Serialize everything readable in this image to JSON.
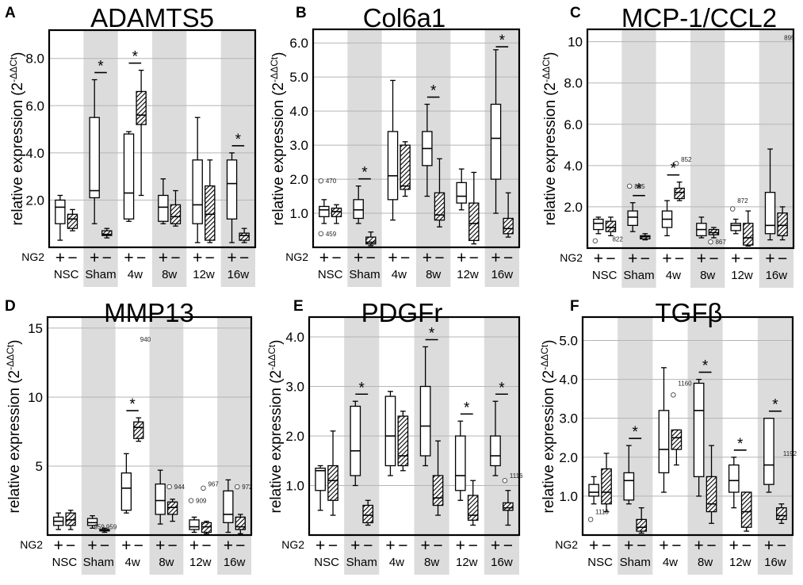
{
  "chart_data": [
    {
      "type": "box",
      "panel": "A",
      "title": "ADAMTS5",
      "ylabel_main": "relative expression (2",
      "ylabel_sup": "-ΔΔCt",
      "ylabel_end": ")",
      "ylim": [
        0,
        9.2
      ],
      "yticks": [
        2,
        4,
        6,
        8
      ],
      "yticklabels": [
        "2.0",
        "4.0",
        "6.0",
        "8.0"
      ],
      "shaded_groups": [
        1,
        3,
        5
      ],
      "groups": [
        "NSC",
        "Sham",
        "4w",
        "8w",
        "12w",
        "16w"
      ],
      "ng2_label": "NG2",
      "ng2_plus": "+",
      "ng2_minus": "−",
      "boxes": [
        [
          {
            "min": 0.3,
            "q1": 1.0,
            "med": 1.7,
            "q3": 2.0,
            "max": 2.2
          },
          {
            "min": 0.7,
            "q1": 0.8,
            "med": 1.2,
            "q3": 1.4,
            "max": 1.6
          }
        ],
        [
          {
            "min": 1.0,
            "q1": 2.1,
            "med": 2.4,
            "q3": 5.5,
            "max": 7.1
          },
          {
            "min": 0.4,
            "q1": 0.5,
            "med": 0.55,
            "q3": 0.7,
            "max": 0.8
          }
        ],
        [
          {
            "min": 1.1,
            "q1": 1.2,
            "med": 2.3,
            "q3": 4.8,
            "max": 4.9
          },
          {
            "min": 2.2,
            "q1": 5.2,
            "med": 5.6,
            "q3": 6.6,
            "max": 7.5
          }
        ],
        [
          {
            "min": 1.0,
            "q1": 1.1,
            "med": 1.7,
            "q3": 2.2,
            "max": 2.9
          },
          {
            "min": 0.9,
            "q1": 1.0,
            "med": 1.3,
            "q3": 1.8,
            "max": 2.4
          }
        ],
        [
          {
            "min": 0.2,
            "q1": 1.0,
            "med": 1.8,
            "q3": 3.7,
            "max": 5.5
          },
          {
            "min": 0.2,
            "q1": 0.3,
            "med": 1.4,
            "q3": 2.6,
            "max": 3.7
          }
        ],
        [
          {
            "min": 0.2,
            "q1": 1.2,
            "med": 2.7,
            "q3": 3.7,
            "max": 4.0
          },
          {
            "min": 0.2,
            "q1": 0.3,
            "med": 0.5,
            "q3": 0.6,
            "max": 0.8
          }
        ]
      ],
      "sig": [
        1,
        2,
        5
      ],
      "sig_symbol": "*",
      "outliers": [],
      "annotations": []
    },
    {
      "type": "box",
      "panel": "B",
      "title": "Col6a1",
      "ylabel_main": "relative expression (2",
      "ylabel_sup": "-ΔΔCt",
      "ylabel_end": ")",
      "ylim": [
        0,
        6.4
      ],
      "yticks": [
        1,
        2,
        3,
        4,
        5,
        6
      ],
      "yticklabels": [
        "1.0",
        "2.0",
        "3.0",
        "4.0",
        "5.0",
        "6.0"
      ],
      "shaded_groups": [
        1,
        3,
        5
      ],
      "groups": [
        "NSC",
        "Sham",
        "4w",
        "8w",
        "12w",
        "16w"
      ],
      "ng2_label": "NG2",
      "ng2_plus": "+",
      "ng2_minus": "−",
      "boxes": [
        [
          {
            "min": 0.7,
            "q1": 0.9,
            "med": 1.1,
            "q3": 1.2,
            "max": 1.4
          },
          {
            "min": 0.7,
            "q1": 0.9,
            "med": 1.05,
            "q3": 1.15,
            "max": 1.25
          }
        ],
        [
          {
            "min": 0.7,
            "q1": 0.85,
            "med": 1.1,
            "q3": 1.4,
            "max": 1.8
          },
          {
            "min": 0.05,
            "q1": 0.1,
            "med": 0.15,
            "q3": 0.3,
            "max": 0.45
          }
        ],
        [
          {
            "min": 0.8,
            "q1": 1.4,
            "med": 2.1,
            "q3": 3.4,
            "max": 4.9
          },
          {
            "min": 1.5,
            "q1": 1.7,
            "med": 1.8,
            "q3": 3.0,
            "max": 3.1
          }
        ],
        [
          {
            "min": 1.5,
            "q1": 2.4,
            "med": 2.9,
            "q3": 3.4,
            "max": 4.2
          },
          {
            "min": 0.6,
            "q1": 0.8,
            "med": 0.95,
            "q3": 1.6,
            "max": 2.6
          }
        ],
        [
          {
            "min": 1.1,
            "q1": 1.3,
            "med": 1.5,
            "q3": 1.9,
            "max": 2.3
          },
          {
            "min": 0.1,
            "q1": 0.2,
            "med": 0.7,
            "q3": 1.3,
            "max": 2.2
          }
        ],
        [
          {
            "min": 1.0,
            "q1": 2.0,
            "med": 3.2,
            "q3": 4.2,
            "max": 5.8
          },
          {
            "min": 0.3,
            "q1": 0.4,
            "med": 0.55,
            "q3": 0.85,
            "max": 1.6
          }
        ]
      ],
      "sig": [
        1,
        3,
        5
      ],
      "sig_symbol": "*",
      "outliers": [
        {
          "g": 0,
          "s": 0,
          "v": 1.95
        },
        {
          "g": 0,
          "s": 0,
          "v": 0.4
        }
      ],
      "annotations": [
        {
          "g": 0,
          "s": 0,
          "v": 1.95,
          "text": "470"
        },
        {
          "g": 0,
          "s": 0,
          "v": 0.4,
          "text": "459"
        }
      ]
    },
    {
      "type": "box",
      "panel": "C",
      "title": "MCP-1/CCL2",
      "ylabel_main": "relative expression (2",
      "ylabel_sup": "-ΔΔCt",
      "ylabel_end": ")",
      "ylim": [
        0,
        10.6
      ],
      "yticks": [
        2,
        4,
        6,
        8,
        10
      ],
      "yticklabels": [
        "2.0",
        "4.0",
        "6.0",
        "8.0",
        "10"
      ],
      "shaded_groups": [
        1,
        3,
        5
      ],
      "groups": [
        "NSC",
        "Sham",
        "4w",
        "8w",
        "12w",
        "16w"
      ],
      "ng2_label": "NG2",
      "ng2_plus": "+",
      "ng2_minus": "−",
      "boxes": [
        [
          {
            "min": 0.7,
            "q1": 0.9,
            "med": 1.2,
            "q3": 1.4,
            "max": 1.5
          },
          {
            "min": 0.6,
            "q1": 0.8,
            "med": 1.0,
            "q3": 1.3,
            "max": 1.5
          }
        ],
        [
          {
            "min": 0.8,
            "q1": 1.1,
            "med": 1.5,
            "q3": 1.8,
            "max": 2.2
          },
          {
            "min": 0.4,
            "q1": 0.45,
            "med": 0.55,
            "q3": 0.6,
            "max": 0.7
          }
        ],
        [
          {
            "min": 0.6,
            "q1": 1.0,
            "med": 1.4,
            "q3": 1.8,
            "max": 2.3
          },
          {
            "min": 2.3,
            "q1": 2.4,
            "med": 2.7,
            "q3": 2.9,
            "max": 3.2
          }
        ],
        [
          {
            "min": 0.5,
            "q1": 0.6,
            "med": 0.9,
            "q3": 1.2,
            "max": 1.5
          },
          {
            "min": 0.5,
            "q1": 0.65,
            "med": 0.75,
            "q3": 0.9,
            "max": 1.0
          }
        ],
        [
          {
            "min": 0.7,
            "q1": 0.85,
            "med": 1.1,
            "q3": 1.2,
            "max": 1.4
          },
          {
            "min": 0.1,
            "q1": 0.15,
            "med": 0.5,
            "q3": 1.2,
            "max": 1.8
          }
        ],
        [
          {
            "min": 0.4,
            "q1": 0.7,
            "med": 1.1,
            "q3": 2.7,
            "max": 4.8
          },
          {
            "min": 0.4,
            "q1": 0.6,
            "med": 1.1,
            "q3": 1.7,
            "max": 2.0
          }
        ]
      ],
      "sig": [
        1,
        2
      ],
      "sig_symbol": "*",
      "outliers": [
        {
          "g": 0,
          "s": 0,
          "v": 0.35
        },
        {
          "g": 1,
          "s": 0,
          "v": 3.0
        },
        {
          "g": 2,
          "s": 1,
          "v": 4.1
        },
        {
          "g": 3,
          "s": 1,
          "v": 0.3
        },
        {
          "g": 4,
          "s": 0,
          "v": 1.9
        }
      ],
      "annotations": [
        {
          "g": 0,
          "s": 1,
          "v": 0.45,
          "text": "822"
        },
        {
          "g": 1,
          "s": 0,
          "v": 3.0,
          "text": "835"
        },
        {
          "g": 2,
          "s": 1,
          "v": 4.3,
          "text": "852"
        },
        {
          "g": 3,
          "s": 1,
          "v": 0.3,
          "text": "867"
        },
        {
          "g": 4,
          "s": 0,
          "v": 2.3,
          "text": "872"
        },
        {
          "g": 5,
          "s": 1,
          "v": 10.2,
          "text": "895"
        }
      ]
    },
    {
      "type": "box",
      "panel": "D",
      "title": "MMP13",
      "ylabel_main": "relative expression (2",
      "ylabel_sup": "-ΔΔCt",
      "ylabel_end": ")",
      "ylim": [
        0,
        15.8
      ],
      "yticks": [
        5,
        10,
        15
      ],
      "yticklabels": [
        "5",
        "10",
        "15"
      ],
      "shaded_groups": [
        1,
        3,
        5
      ],
      "groups": [
        "NSC",
        "Sham",
        "4w",
        "8w",
        "12w",
        "16w"
      ],
      "ng2_label": "NG2",
      "ng2_plus": "+",
      "ng2_minus": "−",
      "boxes": [
        [
          {
            "min": 0.4,
            "q1": 0.7,
            "med": 1.0,
            "q3": 1.3,
            "max": 1.6
          },
          {
            "min": 0.4,
            "q1": 0.7,
            "med": 1.1,
            "q3": 1.6,
            "max": 1.8
          }
        ],
        [
          {
            "min": 0.5,
            "q1": 0.7,
            "med": 0.9,
            "q3": 1.2,
            "max": 1.4
          },
          {
            "min": 0.2,
            "q1": 0.3,
            "med": 0.35,
            "q3": 0.4,
            "max": 0.5
          }
        ],
        [
          {
            "min": 1.6,
            "q1": 1.8,
            "med": 3.4,
            "q3": 4.5,
            "max": 5.9
          },
          {
            "min": 6.8,
            "q1": 7.0,
            "med": 7.8,
            "q3": 8.2,
            "max": 8.5
          }
        ],
        [
          {
            "min": 0.8,
            "q1": 1.5,
            "med": 2.5,
            "q3": 3.7,
            "max": 4.7
          },
          {
            "min": 1.0,
            "q1": 1.5,
            "med": 2.0,
            "q3": 2.4,
            "max": 2.6
          }
        ],
        [
          {
            "min": 0.2,
            "q1": 0.4,
            "med": 0.6,
            "q3": 1.1,
            "max": 1.3
          },
          {
            "min": 0.1,
            "q1": 0.2,
            "med": 0.6,
            "q3": 0.9,
            "max": 1.0
          }
        ],
        [
          {
            "min": 0.2,
            "q1": 0.9,
            "med": 1.5,
            "q3": 3.2,
            "max": 4.0
          },
          {
            "min": 0.1,
            "q1": 0.4,
            "med": 0.6,
            "q3": 1.3,
            "max": 1.5
          }
        ]
      ],
      "sig": [
        2
      ],
      "sig_symbol": "*",
      "outliers": [
        {
          "g": 3,
          "s": 1,
          "v": 3.5
        },
        {
          "g": 4,
          "s": 0,
          "v": 2.5
        },
        {
          "g": 4,
          "s": 1,
          "v": 3.4
        },
        {
          "g": 5,
          "s": 1,
          "v": 3.5
        }
      ],
      "annotations": [
        {
          "g": 1,
          "s": 0,
          "v": 0.6,
          "text": "959"
        },
        {
          "g": 1,
          "s": 1,
          "v": 0.6,
          "text": "959"
        },
        {
          "g": 2,
          "s": 1,
          "v": 14.2,
          "text": "940"
        },
        {
          "g": 3,
          "s": 1,
          "v": 3.5,
          "text": "944"
        },
        {
          "g": 4,
          "s": 0,
          "v": 2.5,
          "text": "909"
        },
        {
          "g": 4,
          "s": 1,
          "v": 3.7,
          "text": "967"
        },
        {
          "g": 5,
          "s": 1,
          "v": 3.5,
          "text": "972"
        }
      ]
    },
    {
      "type": "box",
      "panel": "E",
      "title": "PDGFr",
      "ylabel_main": "relative expression (2",
      "ylabel_sup": "-ΔΔCt",
      "ylabel_end": ")",
      "ylim": [
        0,
        4.4
      ],
      "yticks": [
        1,
        2,
        3,
        4
      ],
      "yticklabels": [
        "1.0",
        "2.0",
        "3.0",
        "4.0"
      ],
      "shaded_groups": [
        1,
        3,
        5
      ],
      "groups": [
        "NSC",
        "Sham",
        "4w",
        "8w",
        "12w",
        "16w"
      ],
      "ng2_label": "NG2",
      "ng2_plus": "+",
      "ng2_minus": "−",
      "boxes": [
        [
          {
            "min": 0.5,
            "q1": 0.9,
            "med": 1.3,
            "q3": 1.35,
            "max": 1.4
          },
          {
            "min": 0.4,
            "q1": 0.7,
            "med": 1.1,
            "q3": 1.4,
            "max": 2.1
          }
        ],
        [
          {
            "min": 1.0,
            "q1": 1.2,
            "med": 1.7,
            "q3": 2.6,
            "max": 2.7
          },
          {
            "min": 0.2,
            "q1": 0.25,
            "med": 0.4,
            "q3": 0.6,
            "max": 0.7
          }
        ],
        [
          {
            "min": 1.2,
            "q1": 1.4,
            "med": 2.0,
            "q3": 2.8,
            "max": 2.9
          },
          {
            "min": 1.3,
            "q1": 1.4,
            "med": 1.6,
            "q3": 2.4,
            "max": 2.5
          }
        ],
        [
          {
            "min": 1.4,
            "q1": 1.6,
            "med": 2.2,
            "q3": 3.0,
            "max": 3.8
          },
          {
            "min": 0.4,
            "q1": 0.6,
            "med": 0.75,
            "q3": 1.2,
            "max": 1.9
          }
        ],
        [
          {
            "min": 0.7,
            "q1": 0.9,
            "med": 1.2,
            "q3": 2.0,
            "max": 2.3
          },
          {
            "min": 0.2,
            "q1": 0.3,
            "med": 0.4,
            "q3": 0.8,
            "max": 1.1
          }
        ],
        [
          {
            "min": 1.2,
            "q1": 1.4,
            "med": 1.6,
            "q3": 2.0,
            "max": 2.7
          },
          {
            "min": 0.2,
            "q1": 0.5,
            "med": 0.55,
            "q3": 0.65,
            "max": 0.9
          }
        ]
      ],
      "sig": [
        1,
        3,
        4,
        5
      ],
      "sig_symbol": "*",
      "outliers": [
        {
          "g": 5,
          "s": 1,
          "v": 1.1
        }
      ],
      "annotations": [
        {
          "g": 5,
          "s": 1,
          "v": 1.2,
          "text": "1116"
        }
      ]
    },
    {
      "type": "box",
      "panel": "F",
      "title": "TGFβ",
      "ylabel_main": "relative expression (2",
      "ylabel_sup": "-ΔΔCt",
      "ylabel_end": ")",
      "ylim": [
        0,
        5.6
      ],
      "yticks": [
        1,
        2,
        3,
        4,
        5
      ],
      "yticklabels": [
        "1.0",
        "2.0",
        "3.0",
        "4.0",
        "5.0"
      ],
      "shaded_groups": [
        1,
        3,
        5
      ],
      "groups": [
        "NSC",
        "Sham",
        "4w",
        "8w",
        "12w",
        "16w"
      ],
      "ng2_label": "NG2",
      "ng2_plus": "+",
      "ng2_minus": "−",
      "boxes": [
        [
          {
            "min": 0.8,
            "q1": 1.0,
            "med": 1.1,
            "q3": 1.3,
            "max": 1.5
          },
          {
            "min": 0.6,
            "q1": 0.8,
            "med": 1.1,
            "q3": 1.7,
            "max": 2.1
          }
        ],
        [
          {
            "min": 0.8,
            "q1": 0.9,
            "med": 1.4,
            "q3": 1.6,
            "max": 2.3
          },
          {
            "min": 0.05,
            "q1": 0.1,
            "med": 0.2,
            "q3": 0.4,
            "max": 0.7
          }
        ],
        [
          {
            "min": 1.1,
            "q1": 1.6,
            "med": 2.2,
            "q3": 3.2,
            "max": 4.3
          },
          {
            "min": 1.8,
            "q1": 2.2,
            "med": 2.5,
            "q3": 2.7,
            "max": 2.7
          }
        ],
        [
          {
            "min": 1.0,
            "q1": 1.5,
            "med": 3.2,
            "q3": 3.9,
            "max": 4.0
          },
          {
            "min": 0.3,
            "q1": 0.6,
            "med": 0.8,
            "q3": 1.5,
            "max": 2.3
          }
        ],
        [
          {
            "min": 0.7,
            "q1": 1.1,
            "med": 1.4,
            "q3": 1.8,
            "max": 2.0
          },
          {
            "min": 0.1,
            "q1": 0.2,
            "med": 0.6,
            "q3": 1.1,
            "max": 1.1
          }
        ],
        [
          {
            "min": 1.1,
            "q1": 1.3,
            "med": 1.8,
            "q3": 3.0,
            "max": 3.0
          },
          {
            "min": 0.3,
            "q1": 0.4,
            "med": 0.5,
            "q3": 0.7,
            "max": 0.8
          }
        ]
      ],
      "sig": [
        1,
        3,
        4,
        5
      ],
      "sig_symbol": "*",
      "outliers": [
        {
          "g": 0,
          "s": 0,
          "v": 0.4
        },
        {
          "g": 2,
          "s": 1,
          "v": 3.6
        }
      ],
      "annotations": [
        {
          "g": 0,
          "s": 0,
          "v": 0.6,
          "text": "1118"
        },
        {
          "g": 2,
          "s": 1,
          "v": 3.9,
          "text": "1160"
        },
        {
          "g": 5,
          "s": 1,
          "v": 2.1,
          "text": "1192"
        }
      ]
    }
  ]
}
